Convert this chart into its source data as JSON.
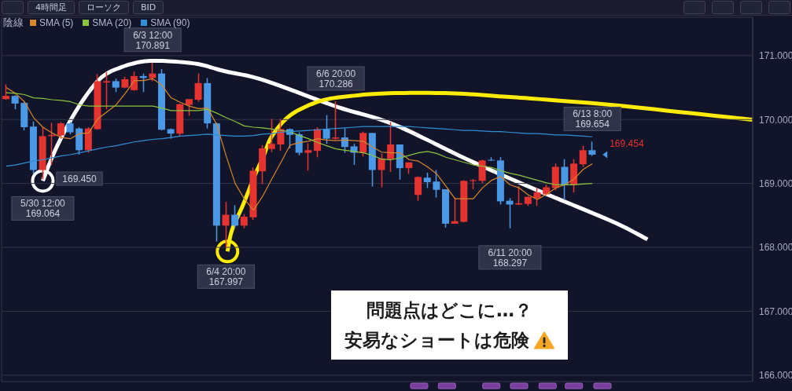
{
  "chart_data": {
    "type": "candlestick",
    "categories": [
      null,
      null,
      null,
      null,
      null,
      null,
      null,
      null,
      null,
      null,
      null,
      null,
      null,
      null,
      null,
      null,
      null,
      null,
      null,
      null,
      null,
      null,
      null,
      null,
      null,
      null,
      null,
      null,
      null,
      null,
      null,
      null,
      null,
      null,
      null,
      null,
      null,
      null,
      null,
      null,
      null,
      null,
      null,
      null,
      null,
      null,
      null,
      null,
      null,
      null,
      null,
      null,
      null,
      null,
      null,
      null,
      null,
      null,
      null,
      null,
      null,
      null,
      null,
      null,
      null,
      null,
      null,
      null,
      null,
      null,
      null,
      null,
      null,
      null,
      null,
      null,
      null,
      null,
      null,
      null,
      null,
      null
    ],
    "ohlc": [
      [
        170.32,
        170.55,
        170.31,
        170.37
      ],
      [
        170.37,
        170.38,
        170.16,
        170.25
      ],
      [
        170.26,
        170.27,
        169.83,
        169.88
      ],
      [
        169.89,
        169.97,
        169.15,
        169.21
      ],
      [
        169.21,
        169.88,
        169.064,
        169.74
      ],
      [
        169.74,
        169.95,
        169.29,
        169.76
      ],
      [
        169.75,
        169.96,
        169.7,
        169.94
      ],
      [
        169.94,
        169.96,
        169.77,
        169.8
      ],
      [
        169.86,
        169.88,
        169.45,
        169.52
      ],
      [
        169.52,
        169.88,
        169.48,
        169.86
      ],
      [
        169.85,
        170.71,
        169.84,
        170.6
      ],
      [
        170.58,
        170.74,
        170.16,
        170.6
      ],
      [
        170.6,
        170.64,
        170.43,
        170.5
      ],
      [
        170.5,
        170.67,
        170.49,
        170.63
      ],
      [
        170.46,
        170.75,
        170.45,
        170.68
      ],
      [
        170.68,
        170.72,
        170.43,
        170.65
      ],
      [
        170.65,
        170.891,
        170.6,
        170.72
      ],
      [
        170.72,
        170.79,
        169.83,
        169.84
      ],
      [
        169.85,
        169.86,
        169.7,
        169.78
      ],
      [
        169.78,
        170.25,
        169.73,
        170.24
      ],
      [
        170.23,
        170.32,
        170.06,
        170.32
      ],
      [
        170.31,
        170.72,
        170.28,
        170.57
      ],
      [
        170.57,
        170.65,
        169.86,
        169.94
      ],
      [
        169.94,
        169.95,
        168.09,
        168.34
      ],
      [
        168.34,
        168.71,
        167.997,
        168.51
      ],
      [
        168.51,
        168.66,
        168.3,
        168.34
      ],
      [
        168.34,
        168.52,
        168.3,
        168.48
      ],
      [
        168.47,
        169.25,
        168.43,
        169.2
      ],
      [
        169.19,
        169.6,
        168.99,
        169.55
      ],
      [
        169.54,
        170.01,
        169.49,
        169.62
      ],
      [
        169.61,
        170.01,
        169.51,
        169.85
      ],
      [
        169.85,
        169.86,
        169.55,
        169.76
      ],
      [
        169.77,
        169.8,
        169.44,
        169.48
      ],
      [
        169.48,
        169.63,
        169.2,
        169.52
      ],
      [
        169.51,
        169.88,
        169.41,
        169.85
      ],
      [
        169.85,
        170.07,
        169.62,
        169.7
      ],
      [
        169.7,
        170.286,
        169.68,
        169.72
      ],
      [
        169.72,
        169.86,
        169.48,
        169.57
      ],
      [
        169.58,
        169.62,
        169.29,
        169.48
      ],
      [
        169.48,
        169.81,
        169.42,
        169.79
      ],
      [
        169.79,
        169.79,
        168.95,
        169.21
      ],
      [
        169.21,
        169.47,
        168.94,
        169.39
      ],
      [
        169.38,
        169.96,
        169.18,
        169.61
      ],
      [
        169.61,
        169.61,
        169.06,
        169.24
      ],
      [
        169.24,
        169.33,
        169.15,
        169.33
      ],
      [
        168.82,
        169.11,
        168.73,
        169.1
      ],
      [
        169.09,
        169.17,
        168.93,
        169.02
      ],
      [
        169.03,
        169.21,
        168.78,
        168.9
      ],
      [
        168.91,
        168.91,
        168.31,
        168.37
      ],
      [
        168.37,
        168.78,
        168.37,
        168.41
      ],
      [
        168.4,
        169.05,
        168.39,
        169.04
      ],
      [
        169.04,
        169.07,
        168.91,
        169.05
      ],
      [
        169.04,
        169.37,
        169.0,
        169.36
      ],
      [
        169.37,
        169.41,
        169.35,
        169.36
      ],
      [
        169.36,
        169.41,
        168.67,
        168.72
      ],
      [
        168.73,
        168.77,
        168.297,
        168.67
      ],
      [
        168.67,
        168.96,
        168.66,
        168.69
      ],
      [
        168.68,
        168.8,
        168.65,
        168.79
      ],
      [
        168.77,
        168.93,
        168.65,
        168.86
      ],
      [
        168.83,
        168.98,
        168.82,
        168.94
      ],
      [
        168.93,
        169.31,
        168.89,
        169.26
      ],
      [
        169.26,
        169.38,
        168.74,
        168.98
      ],
      [
        168.98,
        169.38,
        168.86,
        169.31
      ],
      [
        169.3,
        169.59,
        169.26,
        169.52
      ],
      [
        169.52,
        169.654,
        169.43,
        169.45
      ],
      null,
      null,
      null,
      null,
      null,
      null,
      null,
      null,
      null,
      null,
      null,
      null,
      null,
      null,
      null,
      null,
      null
    ],
    "colors": [
      "#e5332f",
      "#4a98e6",
      "#4a98e6",
      "#4a98e6",
      "#e5332f",
      "#e5332f",
      "#e5332f",
      "#4a98e6",
      "#4a98e6",
      "#e5332f",
      "#e5332f",
      "#e5332f",
      "#4a98e6",
      "#e5332f",
      "#e5332f",
      "#4a98e6",
      "#e5332f",
      "#4a98e6",
      "#4a98e6",
      "#e5332f",
      "#e5332f",
      "#e5332f",
      "#4a98e6",
      "#4a98e6",
      "#e5332f",
      "#4a98e6",
      "#e5332f",
      "#e5332f",
      "#e5332f",
      "#e5332f",
      "#e5332f",
      "#4a98e6",
      "#4a98e6",
      "#e5332f",
      "#e5332f",
      "#4a98e6",
      "#e5332f",
      "#4a98e6",
      "#4a98e6",
      "#e5332f",
      "#4a98e6",
      "#e5332f",
      "#e5332f",
      "#4a98e6",
      "#e5332f",
      "#e5332f",
      "#4a98e6",
      "#4a98e6",
      "#4a98e6",
      "#e5332f",
      "#e5332f",
      "#e5332f",
      "#e5332f",
      "#4a98e6",
      "#4a98e6",
      "#4a98e6",
      "#e5332f",
      "#e5332f",
      "#e5332f",
      "#e5332f",
      "#e5332f",
      "#4a98e6",
      "#e5332f",
      "#e5332f",
      "#4a98e6",
      null,
      null,
      null,
      null,
      null,
      null,
      null,
      null,
      null,
      null,
      null,
      null,
      null,
      null,
      null,
      null,
      null
    ],
    "series": [
      {
        "name": "SMA (5)",
        "type": "line",
        "color": "#d8862c",
        "values": [
          170.5,
          170.41,
          170.28,
          170.03,
          169.88,
          169.79,
          169.72,
          169.7,
          169.78,
          169.79,
          170.01,
          170.12,
          170.23,
          170.41,
          170.61,
          170.61,
          170.64,
          170.54,
          170.34,
          170.27,
          170.21,
          170.17,
          170.18,
          169.92,
          169.44,
          169.0,
          168.76,
          168.58,
          168.8,
          169.07,
          169.33,
          169.6,
          169.64,
          169.66,
          169.7,
          169.68,
          169.67,
          169.68,
          169.67,
          169.66,
          169.57,
          169.49,
          169.48,
          169.48,
          169.37,
          169.35,
          169.26,
          169.15,
          168.96,
          168.76,
          168.76,
          168.76,
          168.93,
          169.05,
          169.11,
          168.98,
          168.93,
          168.82,
          168.75,
          168.83,
          168.93,
          168.98,
          169.07,
          169.22,
          169.31,
          null,
          null,
          null,
          null,
          null,
          null,
          null,
          null,
          null,
          null,
          null,
          null,
          null,
          null,
          null,
          null,
          null
        ]
      },
      {
        "name": "SMA (20)",
        "type": "line",
        "color": "#8cc43e",
        "values": [
          170.42,
          170.41,
          170.39,
          170.34,
          170.33,
          170.31,
          170.3,
          170.28,
          170.23,
          170.21,
          170.21,
          170.21,
          170.21,
          170.21,
          170.21,
          170.21,
          170.21,
          170.18,
          170.14,
          170.14,
          170.14,
          170.14,
          170.16,
          170.1,
          170.03,
          169.97,
          169.9,
          169.88,
          169.87,
          169.85,
          169.83,
          169.81,
          169.75,
          169.7,
          169.64,
          169.59,
          169.54,
          169.52,
          169.5,
          169.48,
          169.44,
          169.38,
          169.37,
          169.4,
          169.44,
          169.48,
          169.5,
          169.47,
          169.41,
          169.37,
          169.33,
          169.29,
          169.27,
          169.25,
          169.2,
          169.16,
          169.13,
          169.09,
          169.05,
          169.01,
          168.98,
          168.98,
          168.98,
          168.99,
          169.0,
          null,
          null,
          null,
          null,
          null,
          null,
          null,
          null,
          null,
          null,
          null,
          null,
          null,
          null,
          null,
          null,
          null
        ]
      },
      {
        "name": "SMA (90)",
        "type": "line",
        "color": "#2f8fd8",
        "values": [
          169.27,
          169.29,
          169.32,
          169.35,
          169.37,
          169.4,
          169.43,
          169.45,
          169.48,
          169.51,
          169.54,
          169.57,
          169.59,
          169.62,
          169.65,
          169.67,
          169.69,
          169.7,
          169.72,
          169.74,
          169.75,
          169.76,
          169.77,
          169.76,
          169.75,
          169.74,
          169.74,
          169.75,
          169.77,
          169.78,
          169.8,
          169.81,
          169.82,
          169.83,
          169.84,
          169.85,
          169.86,
          169.87,
          169.88,
          169.89,
          169.89,
          169.89,
          169.89,
          169.89,
          169.89,
          169.88,
          169.87,
          169.86,
          169.85,
          169.84,
          169.83,
          169.83,
          169.82,
          169.81,
          169.81,
          169.8,
          169.79,
          169.78,
          169.78,
          169.77,
          169.76,
          169.76,
          169.75,
          169.74,
          169.73,
          null,
          null,
          null,
          null,
          null,
          null,
          null,
          null,
          null,
          null,
          null,
          null,
          null,
          null,
          null,
          null,
          null
        ]
      }
    ],
    "ylim": [
      165.9,
      171.6
    ],
    "yticks": [
      {
        "value": 166,
        "label": "166.000"
      },
      {
        "value": 167,
        "label": "167.000"
      },
      {
        "value": 168,
        "label": "168.000"
      },
      {
        "value": 169,
        "label": "169.000"
      },
      {
        "value": 170,
        "label": "170.000"
      },
      {
        "value": 171,
        "label": "171.000"
      }
    ],
    "tick_labels": "y",
    "grid": true,
    "legend": "top left",
    "annotations": [
      "4時間足",
      "ローソク",
      "BID",
      "陰線",
      {
        "text": "5/30 12:00\n169.064",
        "y": 169.064
      },
      {
        "text": "6/3 12:00\n170.891",
        "y": 170.891
      },
      {
        "text": "6/4 20:00\n167.997",
        "y": 167.997
      },
      {
        "text": "6/6 20:00\n170.286",
        "y": 170.286
      },
      {
        "text": "6/11 20:00\n168.297",
        "y": 168.297
      },
      {
        "text": "6/13 8:00\n169.654",
        "y": 169.654
      },
      "169.454",
      {
        "text": "169.450",
        "y": 169.45
      },
      "問題点はどこに…？",
      "安易なショートは危険"
    ]
  }
}
